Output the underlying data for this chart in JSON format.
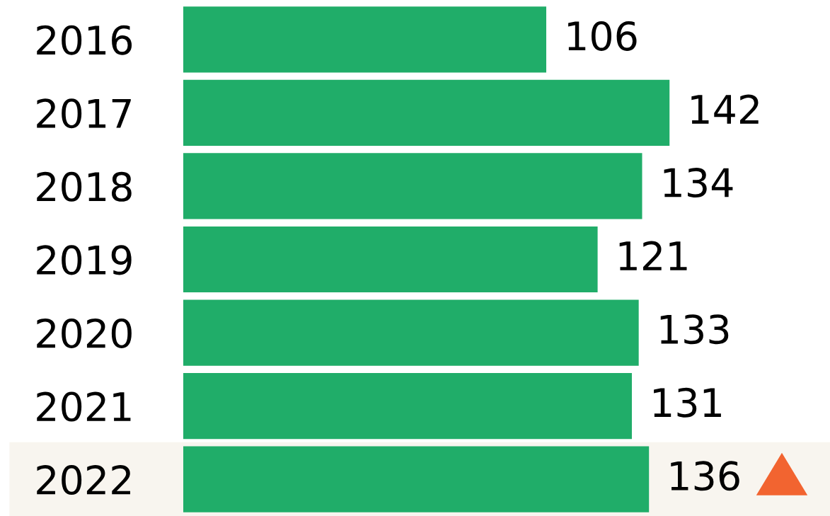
{
  "chart_data": {
    "type": "bar",
    "orientation": "horizontal",
    "categories": [
      "2016",
      "2017",
      "2018",
      "2019",
      "2020",
      "2021",
      "2022"
    ],
    "values": [
      106,
      142,
      134,
      121,
      133,
      131,
      136
    ],
    "color": "#20ad69",
    "data_labels": true,
    "bands": [
      {
        "axis": "y",
        "from": "2022",
        "to": "2022",
        "color": "#f8f5ef"
      }
    ]
  }
}
